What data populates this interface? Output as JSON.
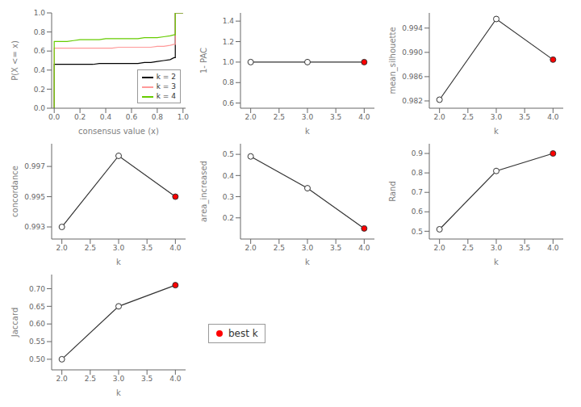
{
  "chart_data": [
    {
      "type": "line",
      "x": [
        0.0,
        0.0,
        0.02,
        0.05,
        0.1,
        0.15,
        0.2,
        0.25,
        0.3,
        0.35,
        0.4,
        0.45,
        0.5,
        0.55,
        0.6,
        0.65,
        0.7,
        0.75,
        0.8,
        0.85,
        0.9,
        0.93,
        0.94,
        0.94,
        1.0,
        1.0
      ],
      "xlim": [
        -0.02,
        1.02
      ],
      "xticks": [
        {
          "value": 0.0,
          "label": "0.0"
        },
        0.2,
        0.4,
        0.6,
        0.8,
        {
          "value": 1.0,
          "label": "1.0"
        }
      ],
      "ylim": [
        0.0,
        1.0
      ],
      "yticks": [
        {
          "value": 0.0,
          "label": "0.0"
        },
        0.2,
        0.4,
        0.6,
        0.8,
        {
          "value": 1.0,
          "label": "1.0"
        }
      ],
      "xlabel": "consensus value (x)",
      "ylabel": "P(X <= x)",
      "legend": "lower right",
      "series": [
        {
          "name": "k = 2",
          "color": "#000000",
          "values": [
            0.0,
            0.46,
            0.46,
            0.46,
            0.46,
            0.46,
            0.46,
            0.46,
            0.46,
            0.47,
            0.47,
            0.47,
            0.47,
            0.47,
            0.47,
            0.47,
            0.48,
            0.48,
            0.49,
            0.5,
            0.51,
            0.53,
            0.53,
            1.0,
            1.0,
            1.0
          ]
        },
        {
          "name": "k = 3",
          "color": "#FF9999",
          "values": [
            0.0,
            0.63,
            0.63,
            0.63,
            0.63,
            0.63,
            0.63,
            0.63,
            0.63,
            0.63,
            0.63,
            0.63,
            0.64,
            0.64,
            0.64,
            0.64,
            0.64,
            0.64,
            0.65,
            0.65,
            0.66,
            0.67,
            0.67,
            1.0,
            1.0,
            1.0
          ]
        },
        {
          "name": "k = 4",
          "color": "#66CC00",
          "values": [
            0.0,
            0.7,
            0.7,
            0.7,
            0.7,
            0.71,
            0.72,
            0.72,
            0.72,
            0.72,
            0.73,
            0.73,
            0.73,
            0.73,
            0.73,
            0.73,
            0.74,
            0.74,
            0.74,
            0.75,
            0.76,
            0.77,
            0.77,
            1.0,
            1.0,
            1.0
          ]
        }
      ]
    },
    {
      "type": "line",
      "x": [
        2,
        3,
        4
      ],
      "xlim": [
        1.82,
        4.18
      ],
      "xticks": [
        {
          "value": 2,
          "label": "2.0"
        },
        2.5,
        {
          "value": 3,
          "label": "3.0"
        },
        3.5,
        {
          "value": 4,
          "label": "4.0"
        }
      ],
      "ylim": [
        0.55,
        1.48
      ],
      "yticks": [
        0.6,
        0.8,
        {
          "value": 1.0,
          "label": "1.0"
        },
        1.2,
        1.4
      ],
      "xlabel": "k",
      "ylabel": "1- PAC",
      "series": [
        {
          "color": "#333333",
          "marker": "o",
          "colors": [
            "#FFFFFF",
            "#FFFFFF",
            "red"
          ],
          "values": [
            1.0,
            1.0,
            1.0
          ]
        }
      ]
    },
    {
      "type": "line",
      "x": [
        2,
        3,
        4
      ],
      "xlim": [
        1.82,
        4.18
      ],
      "xticks": [
        {
          "value": 2,
          "label": "2.0"
        },
        2.5,
        {
          "value": 3,
          "label": "3.0"
        },
        3.5,
        {
          "value": 4,
          "label": "4.0"
        }
      ],
      "ylim": [
        0.9808,
        0.9965
      ],
      "yticks": [
        0.982,
        0.986,
        {
          "value": 0.99,
          "label": "0.990"
        },
        0.994
      ],
      "xlabel": "k",
      "ylabel": "mean_silhouette",
      "series": [
        {
          "color": "#333333",
          "marker": "o",
          "colors": [
            "#FFFFFF",
            "#FFFFFF",
            "red"
          ],
          "values": [
            0.9822,
            0.9955,
            0.9888
          ]
        }
      ]
    },
    {
      "type": "line",
      "x": [
        2,
        3,
        4
      ],
      "xlim": [
        1.82,
        4.18
      ],
      "xticks": [
        {
          "value": 2,
          "label": "2.0"
        },
        2.5,
        {
          "value": 3,
          "label": "3.0"
        },
        3.5,
        {
          "value": 4,
          "label": "4.0"
        }
      ],
      "ylim": [
        0.9922,
        0.9985
      ],
      "yticks": [
        0.993,
        0.995,
        0.997
      ],
      "xlabel": "k",
      "ylabel": "concordance",
      "series": [
        {
          "color": "#333333",
          "marker": "o",
          "colors": [
            "#FFFFFF",
            "#FFFFFF",
            "red"
          ],
          "values": [
            0.993,
            0.9977,
            0.995
          ]
        }
      ]
    },
    {
      "type": "line",
      "x": [
        2,
        3,
        4
      ],
      "xlim": [
        1.82,
        4.18
      ],
      "xticks": [
        {
          "value": 2,
          "label": "2.0"
        },
        2.5,
        {
          "value": 3,
          "label": "3.0"
        },
        3.5,
        {
          "value": 4,
          "label": "4.0"
        }
      ],
      "ylim": [
        0.1,
        0.55
      ],
      "yticks": [
        0.2,
        0.3,
        0.4,
        0.5
      ],
      "xlabel": "k",
      "ylabel": "area_increased",
      "series": [
        {
          "color": "#333333",
          "marker": "o",
          "colors": [
            "#FFFFFF",
            "#FFFFFF",
            "red"
          ],
          "values": [
            0.49,
            0.34,
            0.15
          ]
        }
      ]
    },
    {
      "type": "line",
      "x": [
        2,
        3,
        4
      ],
      "xlim": [
        1.82,
        4.18
      ],
      "xticks": [
        {
          "value": 2,
          "label": "2.0"
        },
        2.5,
        {
          "value": 3,
          "label": "3.0"
        },
        3.5,
        {
          "value": 4,
          "label": "4.0"
        }
      ],
      "ylim": [
        0.46,
        0.95
      ],
      "yticks": [
        0.5,
        0.6,
        0.7,
        0.8,
        0.9
      ],
      "xlabel": "k",
      "ylabel": "Rand",
      "series": [
        {
          "color": "#333333",
          "marker": "o",
          "colors": [
            "#FFFFFF",
            "#FFFFFF",
            "red"
          ],
          "values": [
            0.51,
            0.81,
            0.9
          ]
        }
      ]
    },
    {
      "type": "line",
      "x": [
        2,
        3,
        4
      ],
      "xlim": [
        1.82,
        4.18
      ],
      "xticks": [
        {
          "value": 2,
          "label": "2.0"
        },
        2.5,
        {
          "value": 3,
          "label": "3.0"
        },
        3.5,
        {
          "value": 4,
          "label": "4.0"
        }
      ],
      "ylim": [
        0.47,
        0.74
      ],
      "yticks": [
        {
          "value": 0.5,
          "label": "0.50"
        },
        0.55,
        {
          "value": 0.6,
          "label": "0.60"
        },
        0.65,
        {
          "value": 0.7,
          "label": "0.70"
        }
      ],
      "xlabel": "k",
      "ylabel": "Jaccard",
      "series": [
        {
          "color": "#333333",
          "marker": "o",
          "colors": [
            "#FFFFFF",
            "#FFFFFF",
            "red"
          ],
          "values": [
            0.5,
            0.65,
            0.71
          ]
        }
      ]
    },
    {
      "type": "legend",
      "series": [
        {
          "name": "best k",
          "color": "red",
          "marker": "o"
        }
      ]
    }
  ]
}
